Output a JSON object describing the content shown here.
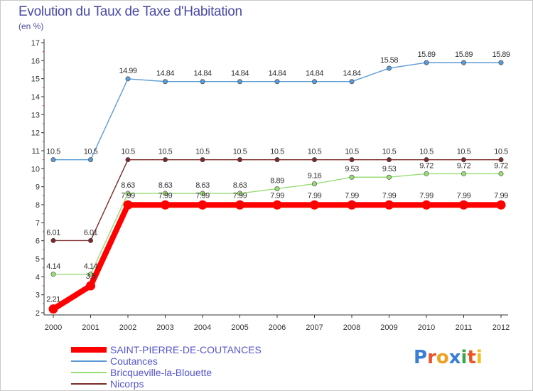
{
  "header": {
    "title": "Evolution du Taux de Taxe d'Habitation",
    "subtitle": "(en %)"
  },
  "logo": {
    "text": "Proxiti",
    "letters": [
      {
        "ch": "P",
        "color": "#3a7fd5"
      },
      {
        "ch": "r",
        "color": "#e8552a"
      },
      {
        "ch": "o",
        "color": "#f0a020"
      },
      {
        "ch": "x",
        "color": "#3a7fd5"
      },
      {
        "ch": "i",
        "color": "#3aa84a"
      },
      {
        "ch": "t",
        "color": "#e8552a"
      },
      {
        "ch": "i",
        "color": "#f0c020"
      }
    ]
  },
  "chart_data": {
    "type": "line",
    "title": "Evolution du Taux de Taxe d'Habitation",
    "subtitle": "(en %)",
    "x": [
      "2000",
      "2001",
      "2002",
      "2003",
      "2004",
      "2005",
      "2006",
      "2007",
      "2008",
      "2009",
      "2010",
      "2011",
      "2012"
    ],
    "ylim": [
      2,
      17
    ],
    "yticks": [
      "2",
      "3",
      "4",
      "5",
      "6",
      "7",
      "8",
      "9",
      "10",
      "11",
      "12",
      "13",
      "14",
      "15",
      "16",
      "17"
    ],
    "grid": false,
    "legend_position": "bottom-left",
    "series": [
      {
        "name": "SAINT-PIERRE-DE-COUTANCES",
        "color": "#ff0000",
        "values": [
          2.21,
          3.5,
          7.99,
          7.99,
          7.99,
          7.99,
          7.99,
          7.99,
          7.99,
          7.99,
          7.99,
          7.99,
          7.99
        ],
        "labels": [
          "2.21",
          "3.5",
          "7.99",
          "7.99",
          "7.99",
          "7.99",
          "7.99",
          "7.99",
          "7.99",
          "7.99",
          "7.99",
          "7.99",
          "7.99"
        ]
      },
      {
        "name": "Coutances",
        "color": "#5b9bd5",
        "values": [
          10.5,
          10.5,
          14.99,
          14.84,
          14.84,
          14.84,
          14.84,
          14.84,
          14.84,
          15.58,
          15.89,
          15.89,
          15.89
        ],
        "labels": [
          "10.5",
          "10.5",
          "14.99",
          "14.84",
          "14.84",
          "14.84",
          "14.84",
          "14.84",
          "14.84",
          "15.58",
          "15.89",
          "15.89",
          "15.89"
        ]
      },
      {
        "name": "Bricqueville-la-Blouette",
        "color": "#99dd77",
        "values": [
          4.14,
          4.14,
          8.63,
          8.63,
          8.63,
          8.63,
          8.89,
          9.16,
          9.53,
          9.53,
          9.72,
          9.72,
          9.72
        ],
        "labels": [
          "4.14",
          "4.14",
          "8.63",
          "8.63",
          "8.63",
          "8.63",
          "8.89",
          "9.16",
          "9.53",
          "9.53",
          "9.72",
          "9.72",
          "9.72"
        ]
      },
      {
        "name": "Nicorps",
        "color": "#7a2a2a",
        "values": [
          6.01,
          6.01,
          10.5,
          10.5,
          10.5,
          10.5,
          10.5,
          10.5,
          10.5,
          10.5,
          10.5,
          10.5,
          10.5
        ],
        "labels": [
          "6.01",
          "6.01",
          "10.5",
          "10.5",
          "10.5",
          "10.5",
          "10.5",
          "10.5",
          "10.5",
          "10.5",
          "10.5",
          "10.5",
          "10.5"
        ]
      }
    ]
  }
}
